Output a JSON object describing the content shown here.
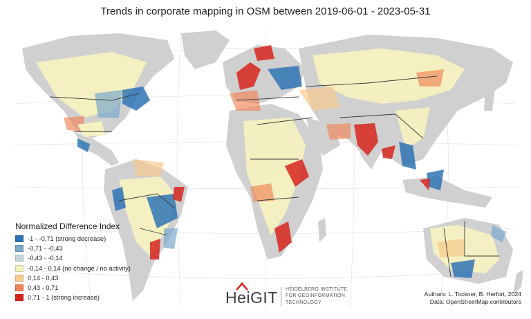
{
  "title": "Trends in corporate mapping in OSM between 2019-06-01 - 2023-05-31",
  "legend": {
    "title": "Normalized Difference Index",
    "items": [
      {
        "label": "-1 - -0,71 (strong decrease)",
        "color": "#2f75b5"
      },
      {
        "label": "-0,71 - -0,43",
        "color": "#7aa9cc"
      },
      {
        "label": "-0,43 - -0,14",
        "color": "#c3d7da"
      },
      {
        "label": "-0,14 - 0,14 (no change / no activity)",
        "color": "#f5f1c0"
      },
      {
        "label": "0,14 - 0,43",
        "color": "#f7c98d"
      },
      {
        "label": "0,43 - 0,71",
        "color": "#ef8354"
      },
      {
        "label": "0,71 - 1 (strong increase)",
        "color": "#d7261e"
      }
    ]
  },
  "logo": {
    "name": "HeiGIT",
    "lines": [
      "HEIDELBERG INSTITUTE",
      "FOR GEOINFORMATION",
      "TECHNOLOGY"
    ]
  },
  "credits": {
    "authors": "Authors: L. Tockner, B. Herfort, 2024",
    "data": "Data: OpenStreetMap contributors"
  },
  "colors": {
    "land_nodata": "#d0d0d0",
    "ocean": "#ffffff",
    "graticule": "#e6e6e6",
    "border": "#3a3a3a"
  }
}
